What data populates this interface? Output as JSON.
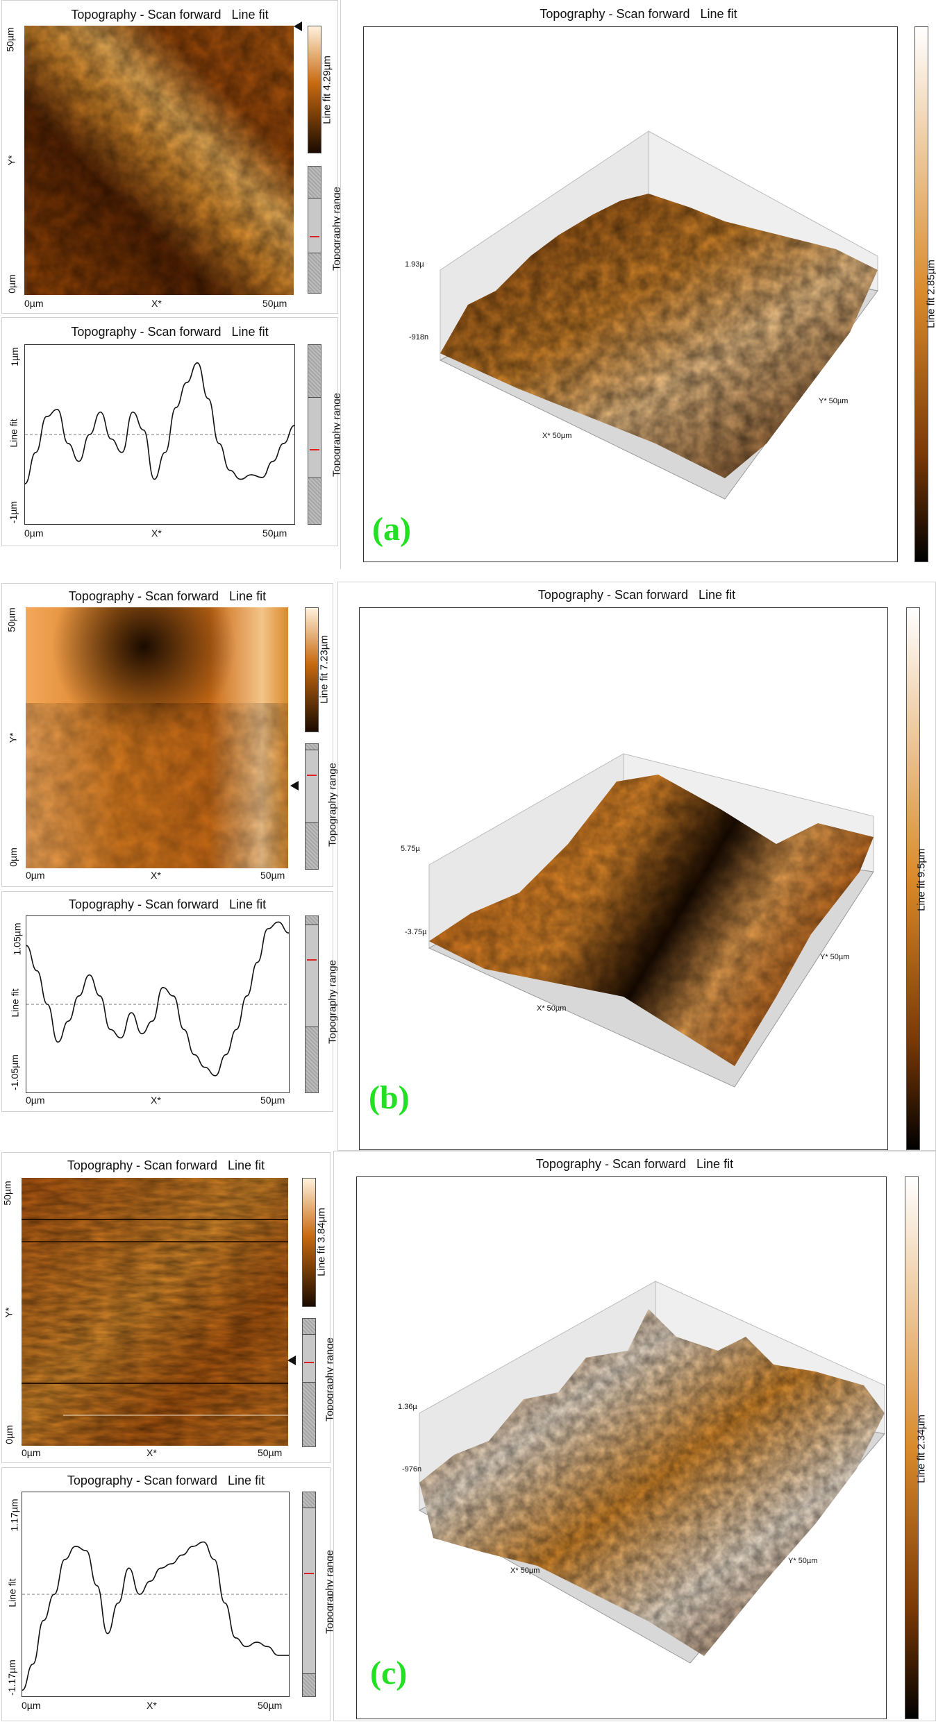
{
  "colors": {
    "accent_letter": "#22e022",
    "afm_dark": "#1a0b00",
    "afm_mid": "#c86a10",
    "afm_light": "#fff1dc",
    "range_marker": "#e02020"
  },
  "panels": [
    {
      "letter": "(a)",
      "image2d": {
        "title": "Topography - Scan forward   Line fit",
        "y_top": "50µm",
        "y_mid": "Y*",
        "y_bottom": "0µm",
        "x_left": "0µm",
        "x_mid": "X*",
        "x_right": "50µm",
        "colorbar_label": "Line fit 4.29µm",
        "range_label": "Topography range"
      },
      "profile": {
        "title": "Topography - Scan forward   Line fit",
        "y_top": "1µm",
        "y_label": "Line fit",
        "y_bottom": "-1µm",
        "x_left": "0µm",
        "x_mid": "X*",
        "x_right": "50µm",
        "range_label": "Topography range"
      },
      "view3d": {
        "title": "Topography - Scan forward   Line fit",
        "z_top": "1.93µ",
        "z_bottom": "-918n",
        "x_axis": "X* 50µm",
        "y_axis": "Y* 50µm",
        "colorbar_label": "Line fit 2.85µm"
      }
    },
    {
      "letter": "(b)",
      "image2d": {
        "title": "Topography - Scan forward   Line fit",
        "y_top": "50µm",
        "y_mid": "Y*",
        "y_bottom": "0µm",
        "x_left": "0µm",
        "x_mid": "X*",
        "x_right": "50µm",
        "colorbar_label": "Line fit 7.23µm",
        "range_label": "Topography range"
      },
      "profile": {
        "title": "Topography - Scan forward   Line fit",
        "y_top": "1.05µm",
        "y_label": "Line fit",
        "y_bottom": "-1.05µm",
        "x_left": "0µm",
        "x_mid": "X*",
        "x_right": "50µm",
        "range_label": "Topography range"
      },
      "view3d": {
        "title": "Topography - Scan forward   Line fit",
        "z_top": "5.75µ",
        "z_bottom": "-3.75µ",
        "x_axis": "X* 50µm",
        "y_axis": "Y* 50µm",
        "colorbar_label": "Line fit 9.5µm"
      }
    },
    {
      "letter": "(c)",
      "image2d": {
        "title": "Topography - Scan forward   Line fit",
        "y_top": "50µm",
        "y_mid": "Y*",
        "y_bottom": "0µm",
        "x_left": "0µm",
        "x_mid": "X*",
        "x_right": "50µm",
        "colorbar_label": "Line fit 3.84µm",
        "range_label": "Topography range"
      },
      "profile": {
        "title": "Topography - Scan forward   Line fit",
        "y_top": "1.17µm",
        "y_label": "Line fit",
        "y_bottom": "-1.17µm",
        "x_left": "0µm",
        "x_mid": "X*",
        "x_right": "50µm",
        "range_label": "Topography range"
      },
      "view3d": {
        "title": "Topography - Scan forward   Line fit",
        "z_top": "1.36µ",
        "z_bottom": "-976n",
        "x_axis": "X* 50µm",
        "y_axis": "Y* 50µm",
        "colorbar_label": "Line fit 2.34µm"
      }
    }
  ],
  "chart_data": [
    {
      "type": "line",
      "name_key": "profile_a",
      "x": [
        0,
        2,
        4,
        6,
        8,
        10,
        12,
        14,
        16,
        18,
        20,
        22,
        24,
        26,
        28,
        30,
        32,
        34,
        36,
        38,
        40,
        42,
        44,
        46,
        48,
        50
      ],
      "values": [
        -0.55,
        -0.2,
        0.2,
        0.28,
        -0.1,
        -0.3,
        0.0,
        0.25,
        -0.05,
        -0.2,
        0.25,
        0.05,
        -0.5,
        -0.2,
        0.3,
        0.58,
        0.8,
        0.4,
        -0.1,
        -0.4,
        -0.5,
        -0.45,
        -0.48,
        -0.3,
        -0.1,
        0.1
      ],
      "xlabel": "X*",
      "ylabel": "Line fit",
      "xlim": [
        0,
        50
      ],
      "ylim": [
        -1,
        1
      ]
    },
    {
      "type": "line",
      "name_key": "profile_b",
      "x": [
        0,
        2,
        4,
        6,
        8,
        10,
        12,
        14,
        16,
        18,
        20,
        22,
        24,
        26,
        28,
        30,
        32,
        34,
        36,
        38,
        40,
        42,
        44,
        46,
        48,
        50
      ],
      "values": [
        0.7,
        0.4,
        0.0,
        -0.45,
        -0.2,
        0.1,
        0.35,
        0.1,
        -0.3,
        -0.4,
        -0.1,
        -0.35,
        -0.2,
        0.2,
        0.1,
        -0.3,
        -0.6,
        -0.75,
        -0.85,
        -0.6,
        -0.3,
        0.1,
        0.5,
        0.9,
        0.98,
        0.85
      ],
      "xlabel": "X*",
      "ylabel": "Line fit",
      "xlim": [
        0,
        50
      ],
      "ylim": [
        -1.05,
        1.05
      ]
    },
    {
      "type": "line",
      "name_key": "profile_c",
      "x": [
        0,
        2,
        4,
        6,
        8,
        10,
        12,
        14,
        16,
        18,
        20,
        22,
        24,
        26,
        28,
        30,
        32,
        34,
        36,
        38,
        40,
        42,
        44,
        46,
        48,
        50
      ],
      "values": [
        -1.1,
        -0.8,
        -0.3,
        0.0,
        0.4,
        0.55,
        0.5,
        0.1,
        -0.45,
        -0.1,
        0.3,
        0.0,
        0.15,
        0.3,
        0.35,
        0.45,
        0.55,
        0.6,
        0.4,
        -0.1,
        -0.5,
        -0.6,
        -0.55,
        -0.6,
        -0.7,
        -0.7
      ],
      "xlabel": "X*",
      "ylabel": "Line fit",
      "xlim": [
        0,
        50
      ],
      "ylim": [
        -1.17,
        1.17
      ]
    }
  ]
}
